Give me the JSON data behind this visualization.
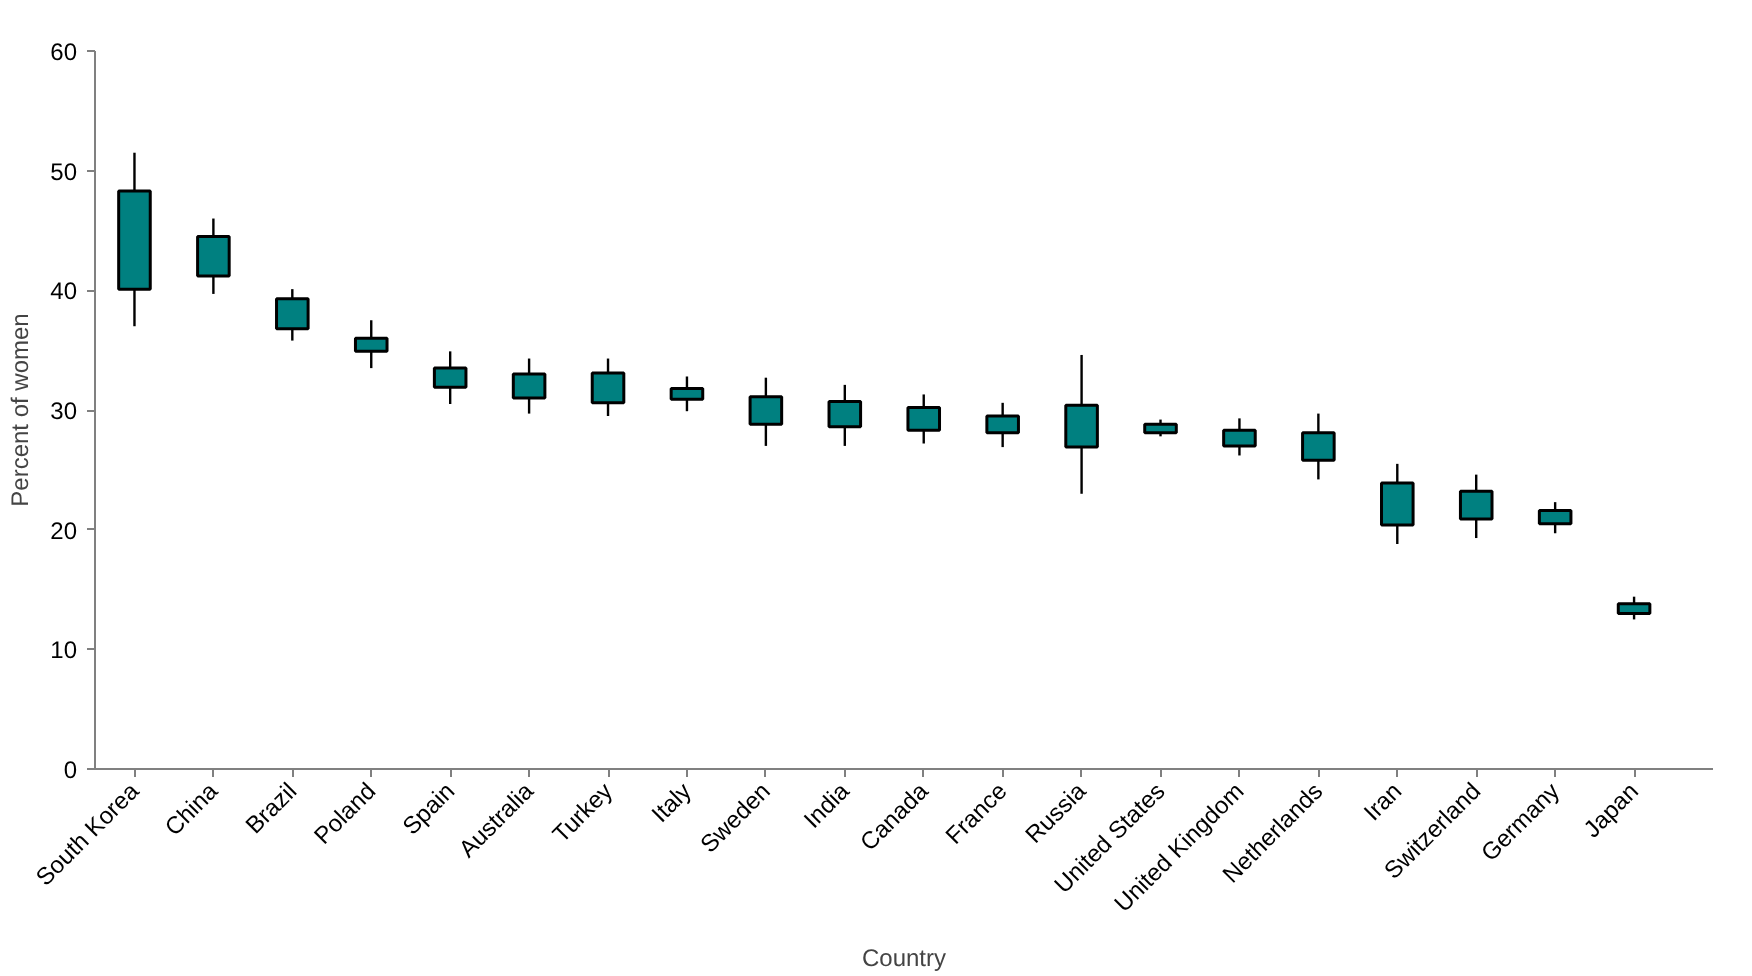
{
  "chart_data": {
    "type": "candlestick",
    "xlabel": "Country",
    "ylabel": "Percent of women",
    "color": "#008080",
    "ylim": [
      0,
      60
    ],
    "yticks": [
      0,
      10,
      20,
      30,
      40,
      50,
      60
    ],
    "grid": false,
    "categories": [
      "South Korea",
      "China",
      "Brazil",
      "Poland",
      "Spain",
      "Australia",
      "Turkey",
      "Italy",
      "Sweden",
      "India",
      "Canada",
      "France",
      "Russia",
      "United States",
      "United Kingdom",
      "Netherlands",
      "Iran",
      "Switzerland",
      "Germany",
      "Japan"
    ],
    "ohlc": [
      [
        40.1,
        51.5,
        37.0,
        48.3
      ],
      [
        41.2,
        46.0,
        39.7,
        44.5
      ],
      [
        36.8,
        40.1,
        35.8,
        39.3
      ],
      [
        34.9,
        37.5,
        33.5,
        36.0
      ],
      [
        31.9,
        34.9,
        30.5,
        33.5
      ],
      [
        31.0,
        34.3,
        29.7,
        33.0
      ],
      [
        30.6,
        34.3,
        29.5,
        33.1
      ],
      [
        30.9,
        32.8,
        29.9,
        31.8
      ],
      [
        28.8,
        32.7,
        27.0,
        31.1
      ],
      [
        28.6,
        32.1,
        27.0,
        30.7
      ],
      [
        28.3,
        31.3,
        27.2,
        30.2
      ],
      [
        28.1,
        30.6,
        26.9,
        29.5
      ],
      [
        26.9,
        34.6,
        23.0,
        30.4
      ],
      [
        28.1,
        29.2,
        27.8,
        28.8
      ],
      [
        27.0,
        29.3,
        26.2,
        28.3
      ],
      [
        25.8,
        29.7,
        24.2,
        28.1
      ],
      [
        20.4,
        25.5,
        18.8,
        23.9
      ],
      [
        20.9,
        24.6,
        19.3,
        23.2
      ],
      [
        20.5,
        22.3,
        19.7,
        21.6
      ],
      [
        13.0,
        14.4,
        12.5,
        13.8
      ]
    ]
  }
}
